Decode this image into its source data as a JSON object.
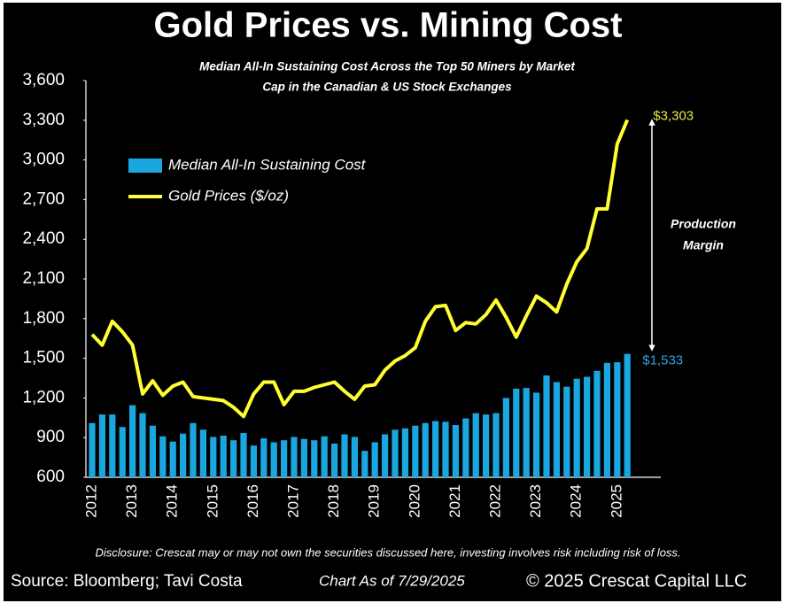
{
  "chart_data": {
    "type": "bar_line",
    "title": "Gold Prices vs. Mining Cost",
    "subtitle": [
      "Median All-In Sustaining Cost Across the Top 50 Miners by Market",
      "Cap in the Canadian & US Stock Exchanges"
    ],
    "categories": [
      "2012",
      null,
      null,
      null,
      "2013",
      null,
      null,
      null,
      "2014",
      null,
      null,
      null,
      "2015",
      null,
      null,
      null,
      "2016",
      null,
      null,
      null,
      "2017",
      null,
      null,
      null,
      "2018",
      null,
      null,
      null,
      "2019",
      null,
      null,
      null,
      "2020",
      null,
      null,
      null,
      "2021",
      null,
      null,
      null,
      "2022",
      null,
      null,
      null,
      "2023",
      null,
      null,
      null,
      "2024",
      null,
      null,
      null,
      "2025",
      null
    ],
    "series": [
      {
        "name": "Median All-In Sustaining Cost",
        "kind": "bar",
        "color": "#1aa7e0",
        "values": [
          1010,
          1075,
          1075,
          980,
          1145,
          1085,
          990,
          910,
          870,
          930,
          1010,
          960,
          905,
          915,
          880,
          935,
          840,
          895,
          865,
          880,
          905,
          890,
          880,
          910,
          855,
          925,
          905,
          800,
          865,
          925,
          960,
          970,
          990,
          1010,
          1025,
          1020,
          995,
          1045,
          1085,
          1075,
          1085,
          1200,
          1270,
          1275,
          1240,
          1370,
          1320,
          1285,
          1345,
          1360,
          1405,
          1465,
          1470,
          1533
        ],
        "value_labels": [
          null,
          null,
          null,
          null,
          null,
          null,
          null,
          null,
          null,
          null,
          null,
          null,
          null,
          null,
          null,
          null,
          null,
          null,
          null,
          null,
          null,
          null,
          null,
          null,
          null,
          null,
          null,
          null,
          null,
          null,
          null,
          null,
          null,
          null,
          null,
          null,
          null,
          null,
          null,
          null,
          null,
          null,
          null,
          null,
          null,
          null,
          null,
          null,
          null,
          null,
          null,
          null,
          null,
          "$1,533"
        ],
        "label_color": "#2ea3dc"
      },
      {
        "name": "Gold Prices ($/oz)",
        "kind": "line",
        "color": "#ffff33",
        "values": [
          1680,
          1600,
          1780,
          1700,
          1600,
          1230,
          1330,
          1220,
          1290,
          1320,
          1210,
          1200,
          1190,
          1180,
          1130,
          1060,
          1230,
          1320,
          1320,
          1150,
          1250,
          1250,
          1280,
          1300,
          1320,
          1250,
          1190,
          1290,
          1300,
          1410,
          1480,
          1520,
          1580,
          1780,
          1890,
          1900,
          1710,
          1770,
          1760,
          1830,
          1940,
          1810,
          1660,
          1820,
          1970,
          1920,
          1850,
          2060,
          2230,
          2330,
          2630,
          2630,
          3120,
          3303
        ],
        "value_labels": [
          null,
          null,
          null,
          null,
          null,
          null,
          null,
          null,
          null,
          null,
          null,
          null,
          null,
          null,
          null,
          null,
          null,
          null,
          null,
          null,
          null,
          null,
          null,
          null,
          null,
          null,
          null,
          null,
          null,
          null,
          null,
          null,
          null,
          null,
          null,
          null,
          null,
          null,
          null,
          null,
          null,
          null,
          null,
          null,
          null,
          null,
          null,
          null,
          null,
          null,
          null,
          null,
          null,
          "$3,303"
        ],
        "label_color": "#e8e84a"
      }
    ],
    "ylim": [
      600,
      3600
    ],
    "yticks": [
      600,
      900,
      {
        "value": 1200,
        "label": "1,200"
      },
      {
        "value": 1500,
        "label": "1,500"
      },
      {
        "value": 1800,
        "label": "1,800"
      },
      {
        "value": 2100,
        "label": "2,100"
      },
      {
        "value": 2400,
        "label": "2,400"
      },
      {
        "value": 2700,
        "label": "2,700"
      },
      {
        "value": 3000,
        "label": "3,000"
      },
      {
        "value": 3300,
        "label": "3,300"
      },
      {
        "value": 3600,
        "label": "3,600"
      }
    ],
    "annotation": [
      "Production",
      "Margin"
    ],
    "disclosure": "Disclosure: Crescat may or may not own the securities discussed here, investing involves risk including risk of loss.",
    "source": "Source: Bloomberg; Tavi Costa",
    "date_note": "Chart As of 7/29/2025",
    "copyright": "© 2025 Crescat Capital LLC"
  }
}
